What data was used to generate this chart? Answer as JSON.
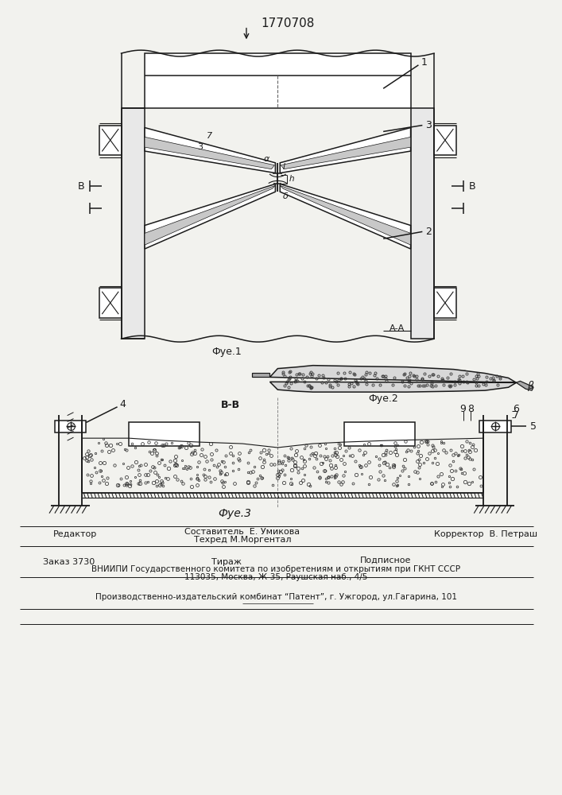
{
  "patent_number": "1770708",
  "fig1_caption": "Фуе.1",
  "fig2_caption": "Фуе.2",
  "fig3_caption": "Фуе.3",
  "section_aa": "А-А",
  "section_bb": "В-В",
  "label_editor": "Редактор",
  "label_sostavitel": "Составитель  Е. Умикова",
  "label_tehred": "Техред М.Моргентал",
  "label_korrektor": "Корректор  В. Петраш",
  "label_zakaz": "Заказ 3730",
  "label_tirazh": "Тираж",
  "label_podpisnoe": "Подписное",
  "label_vnipi": "ВНИИПИ Государственного комитета по изобретениям и открытиям при ГКНТ СССР",
  "label_address": "113035, Москва, Ж-35, Раушская наб., 4/5",
  "label_proizv": "Производственно-издательский комбинат “Патент”, г. Ужгород, ул.Гагарина, 101",
  "bg_color": "#f2f2ee",
  "lc": "#1a1a1a"
}
